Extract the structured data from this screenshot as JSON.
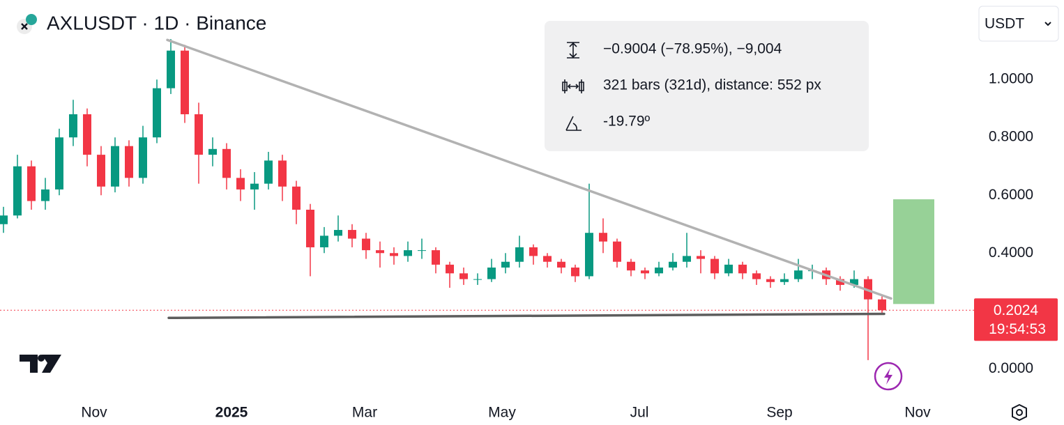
{
  "header": {
    "symbol_title": "AXLUSDT · 1D · Binance",
    "currency": "USDT"
  },
  "chart_data": {
    "type": "candlestick",
    "open": [
      0.5,
      0.53,
      0.7,
      0.58,
      0.62,
      0.8,
      0.88,
      0.74,
      0.63,
      0.77,
      0.66,
      0.8,
      0.97,
      1.1,
      0.88,
      0.74,
      0.76,
      0.66,
      0.62,
      0.64,
      0.72,
      0.63,
      0.55,
      0.42,
      0.46,
      0.48,
      0.45,
      0.41,
      0.4,
      0.39,
      0.41,
      0.41,
      0.36,
      0.33,
      0.31,
      0.31,
      0.35,
      0.37,
      0.42,
      0.39,
      0.37,
      0.35,
      0.32,
      0.47,
      0.44,
      0.37,
      0.34,
      0.33,
      0.35,
      0.37,
      0.39,
      0.38,
      0.33,
      0.36,
      0.33,
      0.31,
      0.3,
      0.31,
      0.34,
      0.34,
      0.31,
      0.29,
      0.31,
      0.24
    ],
    "high": [
      0.56,
      0.74,
      0.72,
      0.66,
      0.83,
      0.93,
      0.9,
      0.77,
      0.8,
      0.79,
      0.84,
      1.0,
      1.14,
      1.12,
      0.92,
      0.8,
      0.78,
      0.69,
      0.68,
      0.75,
      0.74,
      0.65,
      0.57,
      0.49,
      0.53,
      0.5,
      0.47,
      0.44,
      0.42,
      0.44,
      0.45,
      0.42,
      0.37,
      0.35,
      0.33,
      0.38,
      0.4,
      0.46,
      0.43,
      0.4,
      0.38,
      0.36,
      0.64,
      0.52,
      0.45,
      0.38,
      0.35,
      0.37,
      0.4,
      0.47,
      0.41,
      0.39,
      0.38,
      0.37,
      0.34,
      0.32,
      0.33,
      0.38,
      0.36,
      0.35,
      0.32,
      0.34,
      0.32,
      0.25
    ],
    "low": [
      0.47,
      0.52,
      0.55,
      0.55,
      0.6,
      0.77,
      0.7,
      0.6,
      0.61,
      0.63,
      0.64,
      0.78,
      0.95,
      0.85,
      0.64,
      0.7,
      0.62,
      0.58,
      0.55,
      0.62,
      0.58,
      0.5,
      0.32,
      0.4,
      0.44,
      0.42,
      0.38,
      0.35,
      0.36,
      0.37,
      0.38,
      0.33,
      0.28,
      0.29,
      0.29,
      0.3,
      0.33,
      0.35,
      0.36,
      0.35,
      0.33,
      0.3,
      0.31,
      0.4,
      0.35,
      0.32,
      0.31,
      0.32,
      0.34,
      0.35,
      0.33,
      0.31,
      0.32,
      0.31,
      0.29,
      0.28,
      0.29,
      0.3,
      0.31,
      0.29,
      0.27,
      0.28,
      0.03,
      0.19
    ],
    "close": [
      0.53,
      0.7,
      0.58,
      0.62,
      0.8,
      0.88,
      0.74,
      0.63,
      0.77,
      0.66,
      0.8,
      0.97,
      1.1,
      0.88,
      0.74,
      0.76,
      0.66,
      0.62,
      0.64,
      0.72,
      0.63,
      0.55,
      0.42,
      0.46,
      0.48,
      0.45,
      0.41,
      0.4,
      0.39,
      0.41,
      0.41,
      0.36,
      0.33,
      0.31,
      0.31,
      0.35,
      0.37,
      0.42,
      0.39,
      0.37,
      0.35,
      0.32,
      0.47,
      0.44,
      0.37,
      0.34,
      0.33,
      0.35,
      0.37,
      0.39,
      0.38,
      0.33,
      0.36,
      0.33,
      0.31,
      0.3,
      0.31,
      0.34,
      0.34,
      0.31,
      0.29,
      0.31,
      0.24,
      0.2024
    ],
    "up_color": "#089981",
    "down_color": "#f23645",
    "xlim": [
      -0.25,
      69.5
    ],
    "xticks": [
      {
        "value": 6.5,
        "label": "Nov"
      },
      {
        "value": 16.35,
        "label": "2025"
      },
      {
        "value": 25.9,
        "label": "Mar"
      },
      {
        "value": 35.75,
        "label": "May"
      },
      {
        "value": 45.6,
        "label": "Jul"
      },
      {
        "value": 55.65,
        "label": "Sep"
      },
      {
        "value": 65.55,
        "label": "Nov"
      }
    ],
    "ylim": [
      -0.11,
      1.275
    ],
    "yticks": [
      {
        "value": 0,
        "label": "0.0000"
      },
      {
        "value": 0.4,
        "label": "0.4000"
      },
      {
        "value": 0.6,
        "label": "0.6000"
      },
      {
        "value": 0.8,
        "label": "0.8000"
      },
      {
        "value": 1,
        "label": "1.0000"
      }
    ],
    "grid": false,
    "countdown": "19:54:53",
    "trendlines": [
      {
        "x": [
          11.75,
          63.65
        ],
        "y": [
          1.137,
          0.243
        ],
        "color": "#b2b2b2"
      },
      {
        "x": [
          11.85,
          63.15
        ],
        "y": [
          0.176,
          0.19
        ],
        "color": "#5d5d5d"
      }
    ],
    "target_zone": {
      "x": [
        63.8,
        66.75
      ],
      "y": [
        0.224,
        0.586
      ],
      "color": "#97d197"
    },
    "measure": {
      "price_change": "−0.9004 (−78.95%), −9,004",
      "bars": "321 bars (321d), distance: 552 px",
      "angle": "-19.79º"
    }
  }
}
